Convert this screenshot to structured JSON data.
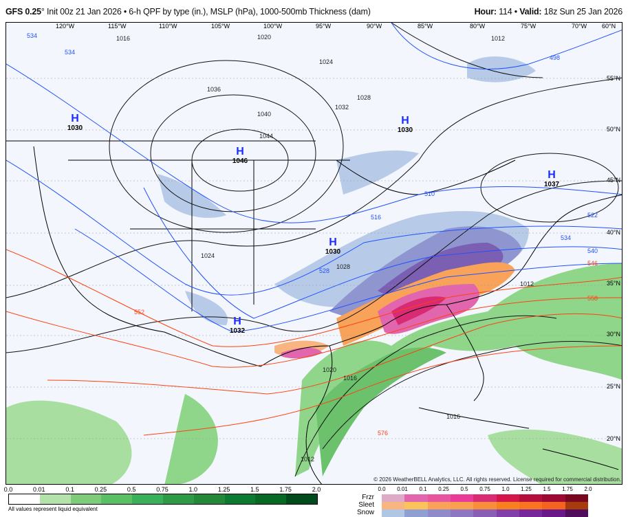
{
  "header": {
    "model": "GFS 0.25",
    "degree": "°",
    "init": " Init 00z 21 Jan 2026 • 6-h QPF by type (in.), MSLP (hPa), 1000-500mb Thickness (dam)",
    "hour_label": "Hour:",
    "hour": " 114 • ",
    "valid_label": "Valid:",
    "valid": " 18z Sun 25 Jan 2026"
  },
  "map": {
    "longitudes": [
      "120°W",
      "115°W",
      "110°W",
      "105°W",
      "100°W",
      "95°W",
      "90°W",
      "85°W",
      "80°W",
      "75°W",
      "70°W",
      "60°N"
    ],
    "latitudes": [
      "55°N",
      "50°N",
      "45°N",
      "40°N",
      "35°N",
      "30°N",
      "25°N",
      "20°N"
    ],
    "highs": [
      {
        "letter": "H",
        "pressure": "1030"
      },
      {
        "letter": "H",
        "pressure": "1046"
      },
      {
        "letter": "H",
        "pressure": "1030"
      },
      {
        "letter": "H",
        "pressure": "1030"
      },
      {
        "letter": "H",
        "pressure": "1032"
      },
      {
        "letter": "H",
        "pressure": "1037"
      }
    ],
    "isobar_labels": [
      "1016",
      "1020",
      "1024",
      "1028",
      "1032",
      "1036",
      "1040",
      "1044",
      "1012",
      "1024",
      "1028",
      "1020",
      "1016",
      "1016",
      "1012",
      "1012"
    ],
    "thickness_labels": [
      "534",
      "534",
      "498",
      "510",
      "516",
      "522",
      "528",
      "534",
      "540",
      "546",
      "552",
      "558",
      "576"
    ],
    "colors": {
      "rain": "#55c060",
      "snow": "#8f95cf",
      "sleet": "#f9a35a",
      "frzr": "#e2449a",
      "isobar": "#000000",
      "thickness_cold": "#2050ff",
      "thickness_warm": "#ff4010"
    }
  },
  "copyright": "© 2026 WeatherBELL Analytics, LLC. All rights reserved. License required for commercial distribution.",
  "legend": {
    "rain_ticks": [
      "0.0",
      "0.01",
      "0.1",
      "0.25",
      "0.5",
      "0.75",
      "1.0",
      "1.25",
      "1.5",
      "1.75",
      "2.0"
    ],
    "rain_colors": [
      "#ffffff",
      "#b3e3aa",
      "#7ecb7a",
      "#59c064",
      "#3bb05a",
      "#2f9a46",
      "#238838",
      "#0c7a30",
      "#066a25",
      "#004a1c"
    ],
    "note": "All values represent liquid equivalent",
    "ptype_ticks": [
      "0.0",
      "0.01",
      "0.1",
      "0.25",
      "0.5",
      "0.75",
      "1.0",
      "1.25",
      "1.5",
      "1.75",
      "2.0"
    ],
    "rows": [
      {
        "label": "Frzr",
        "colors": [
          "#dfa9c8",
          "#e266ad",
          "#e8559f",
          "#e83a96",
          "#d92b74",
          "#d31549",
          "#b40f3c",
          "#9c0a33",
          "#78071f"
        ]
      },
      {
        "label": "Sleet",
        "colors": [
          "#f9b57f",
          "#fcc35d",
          "#faa25a",
          "#f9a050",
          "#f88d3c",
          "#f9801f",
          "#f97320",
          "#f56320",
          "#a73b0d"
        ]
      },
      {
        "label": "Snow",
        "colors": [
          "#afc6e4",
          "#8f9fd1",
          "#8f8bc8",
          "#8f76c1",
          "#8a5fb3",
          "#8040a8",
          "#76289a",
          "#6a1787",
          "#4f0d5c"
        ]
      }
    ]
  }
}
